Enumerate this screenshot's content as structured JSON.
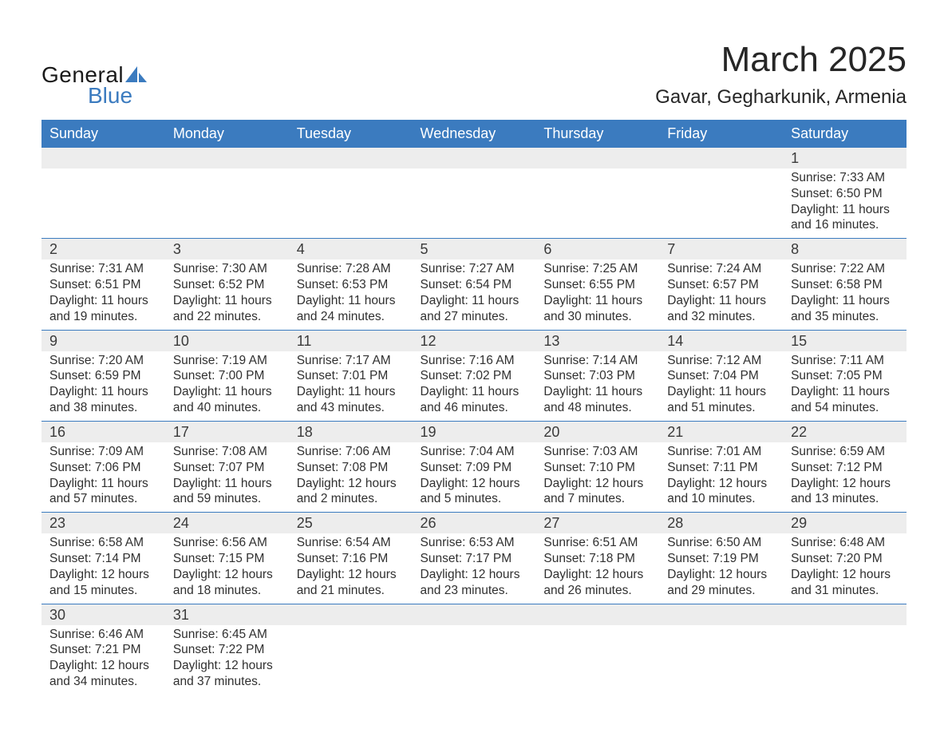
{
  "brand": {
    "name1": "General",
    "name2": "Blue",
    "icon_color": "#3b7bbf",
    "text_color": "#1a1a1a"
  },
  "title": "March 2025",
  "location": "Gavar, Gegharkunik, Armenia",
  "colors": {
    "header_bg": "#3b7bbf",
    "header_text": "#ffffff",
    "daynum_bg": "#ededed",
    "row_border": "#3b7bbf",
    "body_text": "#303030",
    "page_bg": "#ffffff"
  },
  "fonts": {
    "title_size_pt": 33,
    "location_size_pt": 18,
    "header_size_pt": 14,
    "daynum_size_pt": 14,
    "body_size_pt": 12,
    "family": "Arial"
  },
  "layout": {
    "columns": 7,
    "rows": 6,
    "first_day_column_index": 6
  },
  "weekdays": [
    "Sunday",
    "Monday",
    "Tuesday",
    "Wednesday",
    "Thursday",
    "Friday",
    "Saturday"
  ],
  "days": [
    {
      "n": 1,
      "sunrise": "7:33 AM",
      "sunset": "6:50 PM",
      "dl_h": 11,
      "dl_m": 16
    },
    {
      "n": 2,
      "sunrise": "7:31 AM",
      "sunset": "6:51 PM",
      "dl_h": 11,
      "dl_m": 19
    },
    {
      "n": 3,
      "sunrise": "7:30 AM",
      "sunset": "6:52 PM",
      "dl_h": 11,
      "dl_m": 22
    },
    {
      "n": 4,
      "sunrise": "7:28 AM",
      "sunset": "6:53 PM",
      "dl_h": 11,
      "dl_m": 24
    },
    {
      "n": 5,
      "sunrise": "7:27 AM",
      "sunset": "6:54 PM",
      "dl_h": 11,
      "dl_m": 27
    },
    {
      "n": 6,
      "sunrise": "7:25 AM",
      "sunset": "6:55 PM",
      "dl_h": 11,
      "dl_m": 30
    },
    {
      "n": 7,
      "sunrise": "7:24 AM",
      "sunset": "6:57 PM",
      "dl_h": 11,
      "dl_m": 32
    },
    {
      "n": 8,
      "sunrise": "7:22 AM",
      "sunset": "6:58 PM",
      "dl_h": 11,
      "dl_m": 35
    },
    {
      "n": 9,
      "sunrise": "7:20 AM",
      "sunset": "6:59 PM",
      "dl_h": 11,
      "dl_m": 38
    },
    {
      "n": 10,
      "sunrise": "7:19 AM",
      "sunset": "7:00 PM",
      "dl_h": 11,
      "dl_m": 40
    },
    {
      "n": 11,
      "sunrise": "7:17 AM",
      "sunset": "7:01 PM",
      "dl_h": 11,
      "dl_m": 43
    },
    {
      "n": 12,
      "sunrise": "7:16 AM",
      "sunset": "7:02 PM",
      "dl_h": 11,
      "dl_m": 46
    },
    {
      "n": 13,
      "sunrise": "7:14 AM",
      "sunset": "7:03 PM",
      "dl_h": 11,
      "dl_m": 48
    },
    {
      "n": 14,
      "sunrise": "7:12 AM",
      "sunset": "7:04 PM",
      "dl_h": 11,
      "dl_m": 51
    },
    {
      "n": 15,
      "sunrise": "7:11 AM",
      "sunset": "7:05 PM",
      "dl_h": 11,
      "dl_m": 54
    },
    {
      "n": 16,
      "sunrise": "7:09 AM",
      "sunset": "7:06 PM",
      "dl_h": 11,
      "dl_m": 57
    },
    {
      "n": 17,
      "sunrise": "7:08 AM",
      "sunset": "7:07 PM",
      "dl_h": 11,
      "dl_m": 59
    },
    {
      "n": 18,
      "sunrise": "7:06 AM",
      "sunset": "7:08 PM",
      "dl_h": 12,
      "dl_m": 2
    },
    {
      "n": 19,
      "sunrise": "7:04 AM",
      "sunset": "7:09 PM",
      "dl_h": 12,
      "dl_m": 5
    },
    {
      "n": 20,
      "sunrise": "7:03 AM",
      "sunset": "7:10 PM",
      "dl_h": 12,
      "dl_m": 7
    },
    {
      "n": 21,
      "sunrise": "7:01 AM",
      "sunset": "7:11 PM",
      "dl_h": 12,
      "dl_m": 10
    },
    {
      "n": 22,
      "sunrise": "6:59 AM",
      "sunset": "7:12 PM",
      "dl_h": 12,
      "dl_m": 13
    },
    {
      "n": 23,
      "sunrise": "6:58 AM",
      "sunset": "7:14 PM",
      "dl_h": 12,
      "dl_m": 15
    },
    {
      "n": 24,
      "sunrise": "6:56 AM",
      "sunset": "7:15 PM",
      "dl_h": 12,
      "dl_m": 18
    },
    {
      "n": 25,
      "sunrise": "6:54 AM",
      "sunset": "7:16 PM",
      "dl_h": 12,
      "dl_m": 21
    },
    {
      "n": 26,
      "sunrise": "6:53 AM",
      "sunset": "7:17 PM",
      "dl_h": 12,
      "dl_m": 23
    },
    {
      "n": 27,
      "sunrise": "6:51 AM",
      "sunset": "7:18 PM",
      "dl_h": 12,
      "dl_m": 26
    },
    {
      "n": 28,
      "sunrise": "6:50 AM",
      "sunset": "7:19 PM",
      "dl_h": 12,
      "dl_m": 29
    },
    {
      "n": 29,
      "sunrise": "6:48 AM",
      "sunset": "7:20 PM",
      "dl_h": 12,
      "dl_m": 31
    },
    {
      "n": 30,
      "sunrise": "6:46 AM",
      "sunset": "7:21 PM",
      "dl_h": 12,
      "dl_m": 34
    },
    {
      "n": 31,
      "sunrise": "6:45 AM",
      "sunset": "7:22 PM",
      "dl_h": 12,
      "dl_m": 37
    }
  ],
  "labels": {
    "sunrise": "Sunrise:",
    "sunset": "Sunset:",
    "daylight_prefix": "Daylight:",
    "hours_word": "hours",
    "and_word": "and",
    "minutes_word": "minutes."
  }
}
